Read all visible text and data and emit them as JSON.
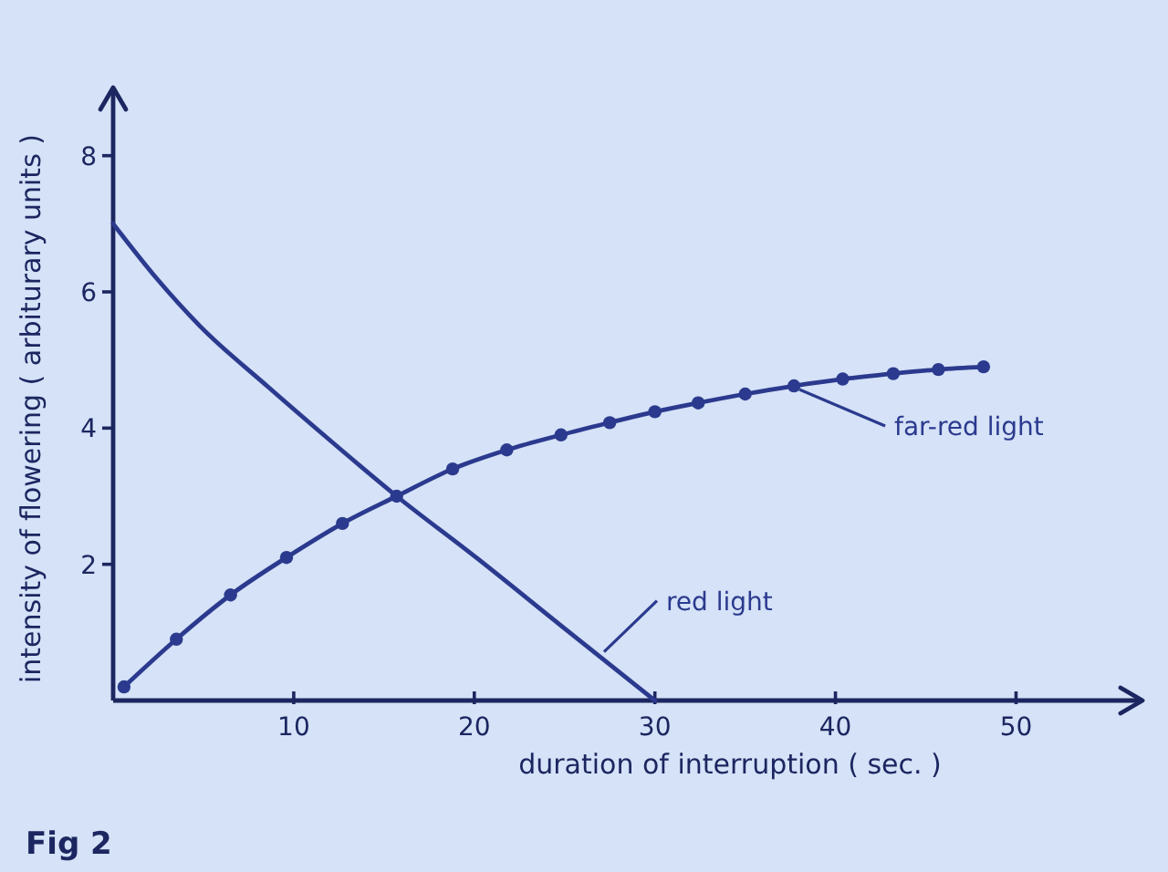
{
  "chart_data": {
    "type": "line",
    "xlabel": "duration of interruption ( sec. )",
    "ylabel": "intensity of flowering ( arbiturary units )",
    "xlim": [
      0,
      57
    ],
    "ylim": [
      0,
      9
    ],
    "xticks": [
      10,
      20,
      30,
      40,
      50
    ],
    "yticks": [
      2,
      4,
      6,
      8
    ],
    "series": [
      {
        "name": "far-red light",
        "color": "#2b3a8e",
        "marker": "circle",
        "x": [
          0.6,
          3.5,
          6.5,
          9.6,
          12.7,
          15.7,
          18.8,
          21.8,
          24.8,
          27.5,
          30.0,
          32.4,
          35.0,
          37.7,
          40.4,
          43.2,
          45.7,
          48.2
        ],
        "values": [
          0.2,
          0.9,
          1.55,
          2.1,
          2.6,
          3.0,
          3.4,
          3.68,
          3.9,
          4.08,
          4.24,
          4.37,
          4.5,
          4.62,
          4.72,
          4.8,
          4.86,
          4.9
        ]
      },
      {
        "name": "red light",
        "color": "#2b3a8e",
        "marker": "none",
        "x": [
          0,
          2.4,
          4.8,
          8.6,
          12.1,
          15.7,
          20.1,
          24.8,
          30
        ],
        "values": [
          7.0,
          6.2,
          5.5,
          4.6,
          3.8,
          3.0,
          2.1,
          1.1,
          0
        ]
      }
    ],
    "annotations": [
      "Fig 2"
    ]
  }
}
